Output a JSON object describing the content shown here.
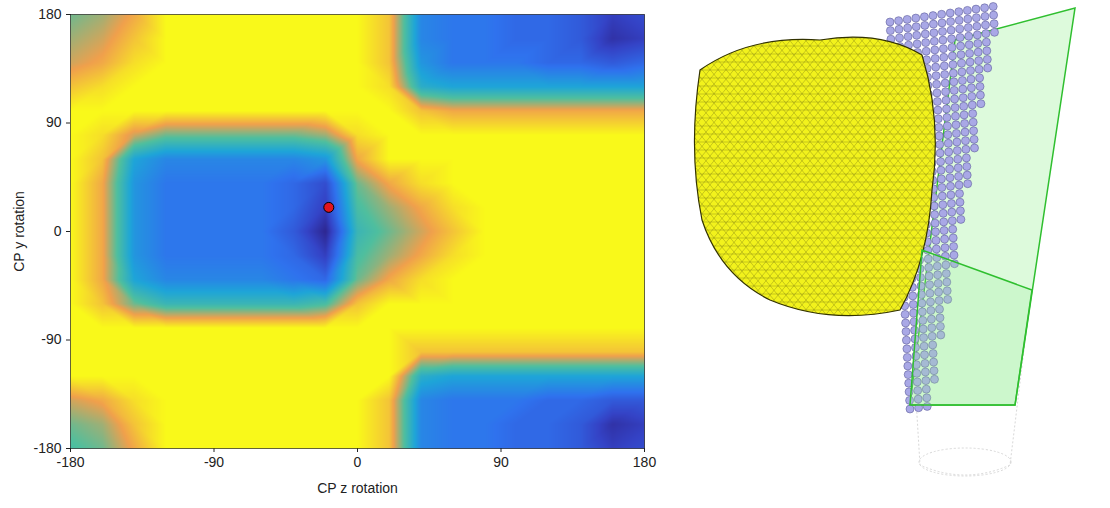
{
  "chart_data": {
    "type": "heatmap",
    "xlabel": "CP z rotation",
    "ylabel": "CP y rotation",
    "xlim": [
      -180,
      180
    ],
    "ylim": [
      -180,
      180
    ],
    "xticks": [
      -180,
      -90,
      0,
      90,
      180
    ],
    "yticks": [
      -180,
      -90,
      0,
      90,
      180
    ],
    "zlim": [
      0,
      10
    ],
    "x": [
      -180,
      -160,
      -140,
      -120,
      -100,
      -80,
      -60,
      -40,
      -20,
      0,
      20,
      40,
      60,
      80,
      100,
      120,
      140,
      160,
      180
    ],
    "y": [
      180,
      160,
      140,
      120,
      100,
      80,
      60,
      40,
      20,
      0,
      -20,
      -40,
      -60,
      -80,
      -100,
      -120,
      -140,
      -160,
      -180
    ],
    "values": [
      [
        7,
        7.5,
        8.5,
        10,
        10,
        10,
        10,
        10,
        10,
        10,
        9,
        4,
        3.5,
        3.5,
        3,
        3,
        2.5,
        1.5,
        2
      ],
      [
        7.5,
        8,
        9,
        10,
        10,
        10,
        10,
        10,
        10,
        10,
        9,
        4,
        3.5,
        3.5,
        3,
        3,
        2.5,
        1,
        1.5
      ],
      [
        8,
        8.5,
        9.5,
        10,
        10,
        10,
        10,
        10,
        10,
        10,
        9,
        4.5,
        3.5,
        3.5,
        3.5,
        3,
        3,
        2.5,
        3
      ],
      [
        9,
        9.5,
        10,
        10,
        10,
        10,
        10,
        10,
        10,
        10,
        9.5,
        5.5,
        5,
        5,
        5,
        5,
        5,
        5,
        5
      ],
      [
        10,
        10,
        10,
        10,
        10,
        10,
        10,
        10,
        10,
        10,
        10,
        9,
        8.5,
        8.5,
        8.5,
        8.5,
        8.5,
        8.5,
        8.5
      ],
      [
        10,
        9.5,
        8,
        7,
        7,
        7,
        7,
        7,
        7.5,
        9.5,
        10,
        10,
        10,
        10,
        10,
        10,
        10,
        10,
        10
      ],
      [
        10,
        9,
        5,
        4,
        4,
        4,
        4,
        4,
        4.5,
        8.5,
        10,
        10,
        10,
        10,
        10,
        10,
        10,
        10,
        10
      ],
      [
        10,
        8.5,
        4.5,
        3.5,
        3.5,
        3.5,
        3.5,
        3,
        2,
        7,
        8.5,
        9.5,
        10,
        10,
        10,
        10,
        10,
        10,
        10
      ],
      [
        10,
        8.5,
        4.5,
        3.5,
        3.5,
        3.5,
        3.5,
        3,
        1.5,
        6.5,
        7.5,
        8.5,
        9.5,
        10,
        10,
        10,
        10,
        10,
        10
      ],
      [
        10,
        8.5,
        4.5,
        3.5,
        3.5,
        3.5,
        3.5,
        2.5,
        0.5,
        6,
        7,
        8,
        9,
        10,
        10,
        10,
        10,
        10,
        10
      ],
      [
        10,
        8.5,
        4.5,
        3.5,
        3.5,
        3.5,
        3.5,
        3,
        1.5,
        6.5,
        7.5,
        8.5,
        9.5,
        10,
        10,
        10,
        10,
        10,
        10
      ],
      [
        10,
        8.5,
        5,
        4,
        4,
        4,
        4,
        3.5,
        3,
        7,
        8.5,
        9.5,
        10,
        10,
        10,
        10,
        10,
        10,
        10
      ],
      [
        10,
        9,
        7,
        6,
        6,
        6,
        6,
        6,
        6.5,
        9,
        10,
        10,
        10,
        10,
        10,
        10,
        10,
        10,
        10
      ],
      [
        10,
        10,
        10,
        10,
        10,
        10,
        10,
        10,
        10,
        10,
        10,
        10,
        10,
        10,
        10,
        10,
        10,
        10,
        10
      ],
      [
        10,
        10,
        10,
        10,
        10,
        10,
        10,
        10,
        10,
        10,
        10,
        9,
        9,
        9,
        9,
        9,
        9,
        9,
        9
      ],
      [
        10,
        10,
        10,
        10,
        10,
        10,
        10,
        10,
        10,
        10,
        10,
        5.5,
        5,
        5,
        5,
        5,
        5,
        5,
        5
      ],
      [
        8,
        8.5,
        9.5,
        10,
        10,
        10,
        10,
        10,
        10,
        10,
        9,
        4,
        3.5,
        3.5,
        3.5,
        3,
        3,
        2.5,
        2.5
      ],
      [
        7,
        7.5,
        9,
        10,
        10,
        10,
        10,
        10,
        10,
        10,
        9,
        4,
        3.5,
        3.5,
        3,
        3,
        2.5,
        1,
        1.5
      ],
      [
        6.5,
        7,
        8.5,
        10,
        10,
        10,
        10,
        10,
        10,
        10,
        9,
        4,
        3.5,
        3.5,
        3,
        3,
        2.5,
        1.5,
        2
      ]
    ],
    "points": {
      "x": [
        -18
      ],
      "y": [
        20
      ],
      "color": "#e3141c",
      "marker": "circle"
    }
  }
}
